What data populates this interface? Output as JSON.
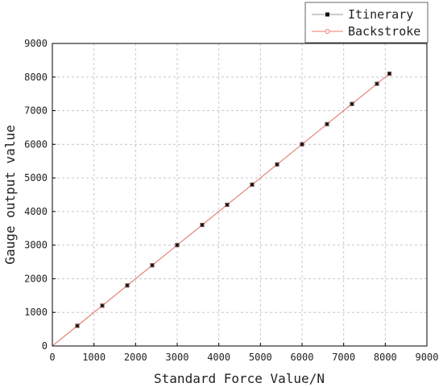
{
  "chart_data": {
    "type": "line",
    "title": "",
    "xlabel": "Standard Force Value/N",
    "ylabel": "Gauge output value",
    "xlim": [
      0,
      9000
    ],
    "ylim": [
      0,
      9000
    ],
    "xticks": [
      0,
      1000,
      2000,
      3000,
      4000,
      5000,
      6000,
      7000,
      8000,
      9000
    ],
    "yticks": [
      0,
      1000,
      2000,
      3000,
      4000,
      5000,
      6000,
      7000,
      8000,
      9000
    ],
    "grid": true,
    "legend_position": "top-right",
    "series": [
      {
        "name": "Itinerary",
        "color": "#111111",
        "line_color": "#999999",
        "marker": "square",
        "x": [
          0,
          600,
          1200,
          1800,
          2400,
          3000,
          3600,
          4200,
          4800,
          5400,
          6000,
          6600,
          7200,
          7800,
          8100
        ],
        "y": [
          0,
          600,
          1200,
          1800,
          2400,
          3000,
          3600,
          4200,
          4800,
          5400,
          6000,
          6600,
          7200,
          7800,
          8100
        ]
      },
      {
        "name": "Backstroke",
        "color": "#f07b6e",
        "line_color": "#f07b6e",
        "marker": "circle",
        "x": [
          0,
          600,
          1200,
          1800,
          2400,
          3000,
          3600,
          4200,
          4800,
          5400,
          6000,
          6600,
          7200,
          7800,
          8100
        ],
        "y": [
          0,
          600,
          1200,
          1800,
          2400,
          3000,
          3600,
          4200,
          4800,
          5400,
          6000,
          6600,
          7200,
          7800,
          8100
        ]
      }
    ]
  }
}
